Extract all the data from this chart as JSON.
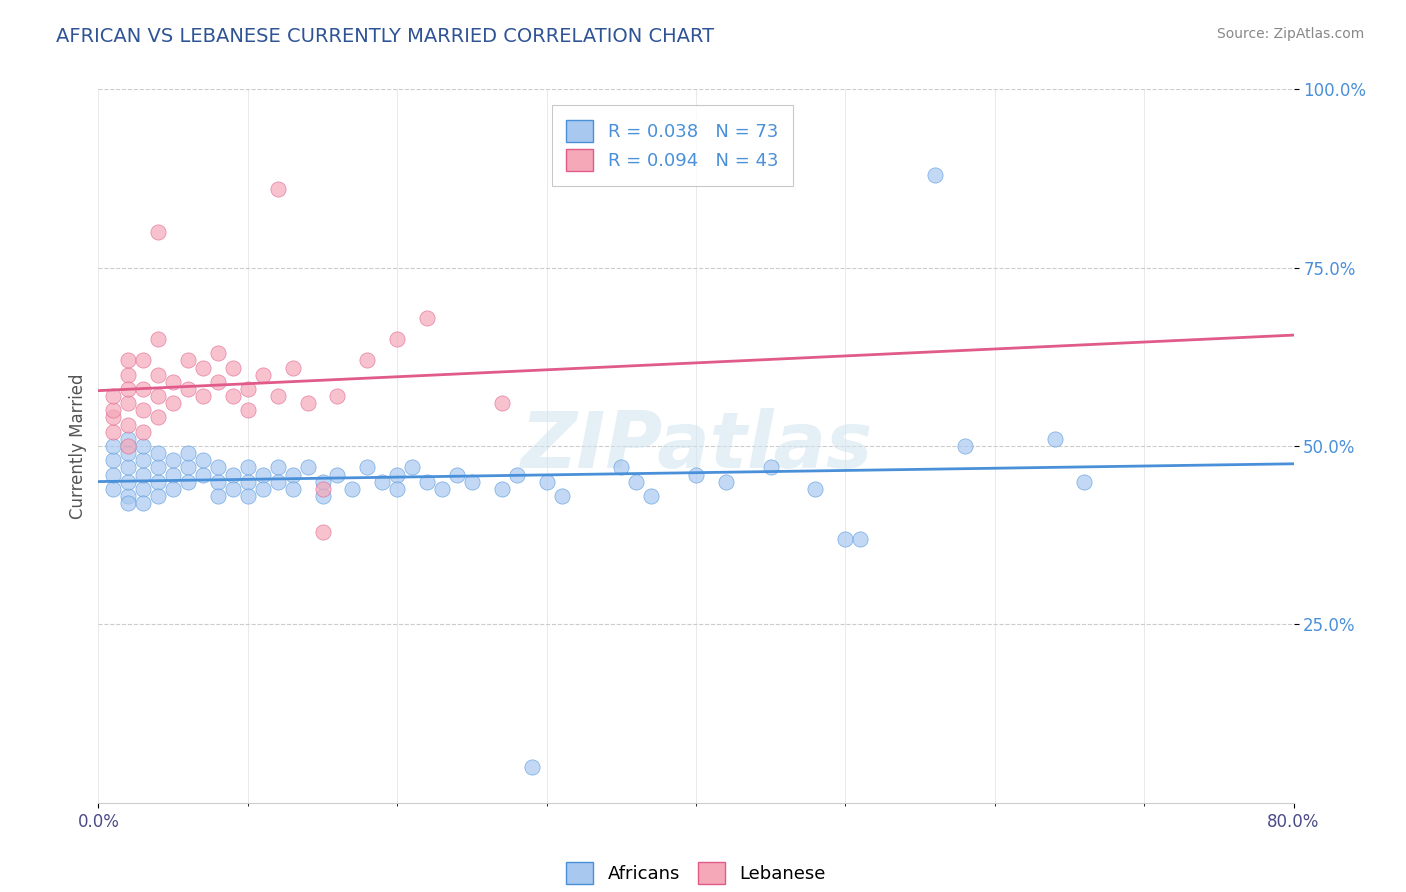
{
  "title": "AFRICAN VS LEBANESE CURRENTLY MARRIED CORRELATION CHART",
  "source_text": "Source: ZipAtlas.com",
  "ylabel": "Currently Married",
  "xlim": [
    0.0,
    0.8
  ],
  "ylim": [
    0.0,
    1.0
  ],
  "xtick_vals": [
    0.0,
    0.8
  ],
  "xtick_labels": [
    "0.0%",
    "80.0%"
  ],
  "ytick_vals": [
    0.25,
    0.5,
    0.75,
    1.0
  ],
  "ytick_labels": [
    "25.0%",
    "50.0%",
    "75.0%",
    "100.0%"
  ],
  "legend_african_label": "R = 0.038   N = 73",
  "legend_lebanese_label": "R = 0.094   N = 43",
  "legend_bottom_african": "Africans",
  "legend_bottom_lebanese": "Lebanese",
  "african_color": "#a8c8f0",
  "lebanese_color": "#f4a8b8",
  "african_line_color": "#4a90d9",
  "lebanese_line_color": "#e05a8a",
  "title_color": "#2f5496",
  "source_color": "#888888",
  "watermark": "ZIPatlas",
  "african_dots": [
    [
      0.01,
      0.44
    ],
    [
      0.01,
      0.46
    ],
    [
      0.01,
      0.48
    ],
    [
      0.01,
      0.5
    ],
    [
      0.02,
      0.43
    ],
    [
      0.02,
      0.45
    ],
    [
      0.02,
      0.47
    ],
    [
      0.02,
      0.49
    ],
    [
      0.02,
      0.51
    ],
    [
      0.02,
      0.42
    ],
    [
      0.03,
      0.44
    ],
    [
      0.03,
      0.46
    ],
    [
      0.03,
      0.48
    ],
    [
      0.03,
      0.5
    ],
    [
      0.03,
      0.42
    ],
    [
      0.04,
      0.45
    ],
    [
      0.04,
      0.47
    ],
    [
      0.04,
      0.49
    ],
    [
      0.04,
      0.43
    ],
    [
      0.05,
      0.46
    ],
    [
      0.05,
      0.48
    ],
    [
      0.05,
      0.44
    ],
    [
      0.06,
      0.47
    ],
    [
      0.06,
      0.45
    ],
    [
      0.06,
      0.49
    ],
    [
      0.07,
      0.46
    ],
    [
      0.07,
      0.48
    ],
    [
      0.08,
      0.45
    ],
    [
      0.08,
      0.47
    ],
    [
      0.08,
      0.43
    ],
    [
      0.09,
      0.46
    ],
    [
      0.09,
      0.44
    ],
    [
      0.1,
      0.47
    ],
    [
      0.1,
      0.45
    ],
    [
      0.1,
      0.43
    ],
    [
      0.11,
      0.46
    ],
    [
      0.11,
      0.44
    ],
    [
      0.12,
      0.47
    ],
    [
      0.12,
      0.45
    ],
    [
      0.13,
      0.46
    ],
    [
      0.13,
      0.44
    ],
    [
      0.14,
      0.47
    ],
    [
      0.15,
      0.45
    ],
    [
      0.15,
      0.43
    ],
    [
      0.16,
      0.46
    ],
    [
      0.17,
      0.44
    ],
    [
      0.18,
      0.47
    ],
    [
      0.19,
      0.45
    ],
    [
      0.2,
      0.46
    ],
    [
      0.2,
      0.44
    ],
    [
      0.21,
      0.47
    ],
    [
      0.22,
      0.45
    ],
    [
      0.23,
      0.44
    ],
    [
      0.24,
      0.46
    ],
    [
      0.25,
      0.45
    ],
    [
      0.27,
      0.44
    ],
    [
      0.28,
      0.46
    ],
    [
      0.3,
      0.45
    ],
    [
      0.31,
      0.43
    ],
    [
      0.35,
      0.47
    ],
    [
      0.36,
      0.45
    ],
    [
      0.37,
      0.43
    ],
    [
      0.4,
      0.46
    ],
    [
      0.42,
      0.45
    ],
    [
      0.45,
      0.47
    ],
    [
      0.48,
      0.44
    ],
    [
      0.5,
      0.37
    ],
    [
      0.51,
      0.37
    ],
    [
      0.56,
      0.88
    ],
    [
      0.58,
      0.5
    ],
    [
      0.64,
      0.51
    ],
    [
      0.66,
      0.45
    ],
    [
      0.29,
      0.05
    ]
  ],
  "lebanese_dots": [
    [
      0.01,
      0.52
    ],
    [
      0.01,
      0.54
    ],
    [
      0.01,
      0.55
    ],
    [
      0.01,
      0.57
    ],
    [
      0.02,
      0.5
    ],
    [
      0.02,
      0.53
    ],
    [
      0.02,
      0.56
    ],
    [
      0.02,
      0.6
    ],
    [
      0.02,
      0.62
    ],
    [
      0.02,
      0.58
    ],
    [
      0.03,
      0.52
    ],
    [
      0.03,
      0.55
    ],
    [
      0.03,
      0.58
    ],
    [
      0.03,
      0.62
    ],
    [
      0.04,
      0.54
    ],
    [
      0.04,
      0.57
    ],
    [
      0.04,
      0.6
    ],
    [
      0.04,
      0.65
    ],
    [
      0.05,
      0.56
    ],
    [
      0.05,
      0.59
    ],
    [
      0.06,
      0.58
    ],
    [
      0.06,
      0.62
    ],
    [
      0.07,
      0.57
    ],
    [
      0.07,
      0.61
    ],
    [
      0.08,
      0.59
    ],
    [
      0.08,
      0.63
    ],
    [
      0.09,
      0.57
    ],
    [
      0.09,
      0.61
    ],
    [
      0.1,
      0.58
    ],
    [
      0.1,
      0.55
    ],
    [
      0.11,
      0.6
    ],
    [
      0.12,
      0.57
    ],
    [
      0.13,
      0.61
    ],
    [
      0.14,
      0.56
    ],
    [
      0.15,
      0.38
    ],
    [
      0.15,
      0.44
    ],
    [
      0.16,
      0.57
    ],
    [
      0.18,
      0.62
    ],
    [
      0.2,
      0.65
    ],
    [
      0.22,
      0.68
    ],
    [
      0.27,
      0.56
    ],
    [
      0.04,
      0.8
    ],
    [
      0.12,
      0.86
    ]
  ]
}
